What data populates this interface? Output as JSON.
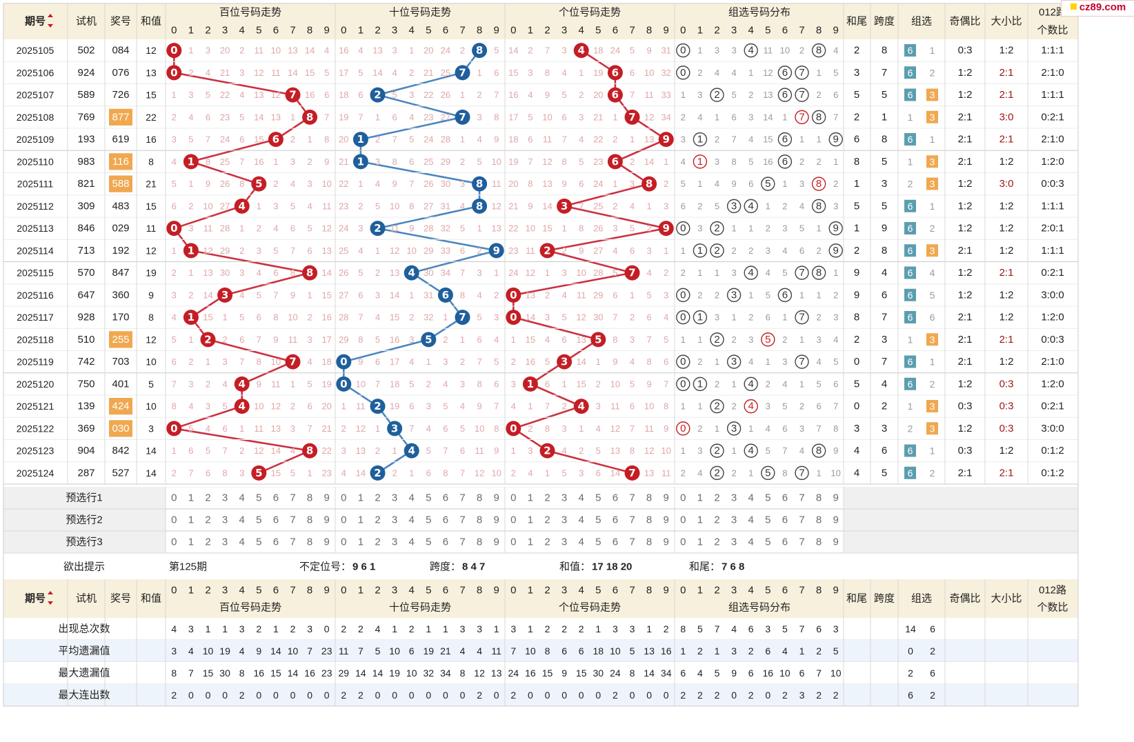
{
  "watermark": "cz89.com",
  "colors": {
    "header_bg": "#f7f0dc",
    "red_ball": "#c41e25",
    "blue_ball": "#1f5f9b",
    "red_line": "#cc3040",
    "blue_line": "#4a86bf",
    "orange_cell": "#f0a850",
    "teal_cell": "#5a9eb0",
    "miss_text": "#e0a6a6",
    "group_miss_text": "#9a9a9a",
    "blue_row": "#eef4fb"
  },
  "headers": {
    "period": "期号",
    "trial": "试机",
    "prize": "奖号",
    "sum": "和值",
    "hundreds": "百位号码走势",
    "tens": "十位号码走势",
    "units": "个位号码走势",
    "group": "组选号码分布",
    "sum_tail": "和尾",
    "span": "跨度",
    "group_type": "组选",
    "odd_even": "奇偶比",
    "big_small": "大小比",
    "route_012": "012路",
    "route_count": "个数比",
    "digits": [
      "0",
      "1",
      "2",
      "3",
      "4",
      "5",
      "6",
      "7",
      "8",
      "9"
    ]
  },
  "rows": [
    {
      "period": "2025105",
      "trial": "502",
      "prize": "084",
      "sum": "12",
      "tail": "2",
      "span": "8",
      "grp6": "6",
      "grp3": "1",
      "odd_even": "0:3",
      "big_small": "1:2",
      "route": "1:1:1",
      "h": [
        0,
        1,
        3,
        20,
        2,
        11,
        10,
        13,
        14,
        4
      ],
      "t": [
        16,
        4,
        13,
        3,
        1,
        20,
        24,
        2,
        0,
        5
      ],
      "u": [
        14,
        2,
        7,
        3,
        0,
        18,
        24,
        5,
        9,
        31
      ],
      "g": [
        0,
        1,
        3,
        3,
        0,
        11,
        10,
        2,
        0,
        4
      ]
    },
    {
      "period": "2025106",
      "trial": "924",
      "prize": "076",
      "sum": "13",
      "tail": "3",
      "span": "7",
      "grp6": "6",
      "grp3": "2",
      "odd_even": "1:2",
      "big_small": "2:1",
      "route": "2:1:0",
      "h": [
        0,
        2,
        4,
        21,
        3,
        12,
        11,
        14,
        15,
        5
      ],
      "t": [
        17,
        5,
        14,
        4,
        2,
        21,
        25,
        0,
        1,
        6
      ],
      "u": [
        15,
        3,
        8,
        4,
        1,
        19,
        0,
        6,
        10,
        32
      ],
      "g": [
        0,
        2,
        4,
        4,
        1,
        12,
        0,
        0,
        1,
        5
      ]
    },
    {
      "period": "2025107",
      "trial": "589",
      "prize": "726",
      "sum": "15",
      "tail": "5",
      "span": "5",
      "grp6": "6",
      "grp3": "3",
      "odd_even": "1:2",
      "big_small": "2:1",
      "route": "1:1:1",
      "h": [
        1,
        3,
        5,
        22,
        4,
        13,
        12,
        0,
        16,
        6
      ],
      "t": [
        18,
        6,
        0,
        5,
        3,
        22,
        26,
        1,
        2,
        7
      ],
      "u": [
        16,
        4,
        9,
        5,
        2,
        20,
        0,
        7,
        11,
        33
      ],
      "g": [
        1,
        3,
        0,
        5,
        2,
        13,
        0,
        0,
        2,
        6
      ]
    },
    {
      "period": "2025108",
      "trial": "769",
      "prize": "877",
      "sum": "22",
      "tail": "2",
      "span": "1",
      "grp6": "1",
      "grp3": "3",
      "odd_even": "2:1",
      "big_small": "3:0",
      "route": "0:2:1",
      "h": [
        2,
        4,
        6,
        23,
        5,
        14,
        13,
        1,
        0,
        7
      ],
      "t": [
        19,
        7,
        1,
        6,
        4,
        23,
        27,
        0,
        3,
        8
      ],
      "u": [
        17,
        5,
        10,
        6,
        3,
        21,
        1,
        0,
        12,
        34
      ],
      "g": [
        2,
        4,
        1,
        6,
        3,
        14,
        1,
        0,
        0,
        7
      ]
    },
    {
      "period": "2025109",
      "trial": "193",
      "prize": "619",
      "sum": "16",
      "tail": "6",
      "span": "8",
      "grp6": "6",
      "grp3": "1",
      "odd_even": "2:1",
      "big_small": "2:1",
      "route": "2:1:0",
      "h": [
        3,
        5,
        7,
        24,
        6,
        15,
        0,
        2,
        1,
        8
      ],
      "t": [
        20,
        0,
        2,
        7,
        5,
        24,
        28,
        1,
        4,
        9
      ],
      "u": [
        18,
        6,
        11,
        7,
        4,
        22,
        2,
        1,
        13,
        0
      ],
      "g": [
        3,
        0,
        2,
        7,
        4,
        15,
        0,
        1,
        1,
        0
      ]
    },
    {
      "period": "2025110",
      "trial": "983",
      "prize": "116",
      "sum": "8",
      "tail": "8",
      "span": "5",
      "grp6": "1",
      "grp3": "3",
      "odd_even": "2:1",
      "big_small": "1:2",
      "route": "1:2:0",
      "h": [
        4,
        0,
        8,
        25,
        7,
        16,
        1,
        3,
        2,
        9
      ],
      "t": [
        21,
        0,
        3,
        8,
        6,
        25,
        29,
        2,
        5,
        10
      ],
      "u": [
        19,
        7,
        12,
        8,
        5,
        23,
        0,
        2,
        14,
        1
      ],
      "g": [
        4,
        0,
        3,
        8,
        5,
        16,
        0,
        2,
        2,
        1
      ]
    },
    {
      "period": "2025111",
      "trial": "821",
      "prize": "588",
      "sum": "21",
      "tail": "1",
      "span": "3",
      "grp6": "2",
      "grp3": "3",
      "odd_even": "1:2",
      "big_small": "3:0",
      "route": "0:0:3",
      "h": [
        5,
        1,
        9,
        26,
        8,
        0,
        2,
        4,
        3,
        10
      ],
      "t": [
        22,
        1,
        4,
        9,
        7,
        26,
        30,
        3,
        0,
        11
      ],
      "u": [
        20,
        8,
        13,
        9,
        6,
        24,
        1,
        3,
        0,
        2
      ],
      "g": [
        5,
        1,
        4,
        9,
        6,
        0,
        1,
        3,
        0,
        2
      ]
    },
    {
      "period": "2025112",
      "trial": "309",
      "prize": "483",
      "sum": "15",
      "tail": "5",
      "span": "5",
      "grp6": "6",
      "grp3": "1",
      "odd_even": "1:2",
      "big_small": "1:2",
      "route": "1:1:1",
      "h": [
        6,
        2,
        10,
        27,
        0,
        1,
        3,
        5,
        4,
        11
      ],
      "t": [
        23,
        2,
        5,
        10,
        8,
        27,
        31,
        4,
        0,
        12
      ],
      "u": [
        21,
        9,
        14,
        0,
        7,
        25,
        2,
        4,
        1,
        3
      ],
      "g": [
        6,
        2,
        5,
        0,
        0,
        1,
        2,
        4,
        0,
        3
      ]
    },
    {
      "period": "2025113",
      "trial": "846",
      "prize": "029",
      "sum": "11",
      "tail": "1",
      "span": "9",
      "grp6": "6",
      "grp3": "2",
      "odd_even": "1:2",
      "big_small": "1:2",
      "route": "2:0:1",
      "h": [
        0,
        3,
        11,
        28,
        1,
        2,
        4,
        6,
        5,
        12
      ],
      "t": [
        24,
        3,
        0,
        11,
        9,
        28,
        32,
        5,
        1,
        13
      ],
      "u": [
        22,
        10,
        15,
        1,
        8,
        26,
        3,
        5,
        2,
        0
      ],
      "g": [
        0,
        3,
        0,
        1,
        1,
        2,
        3,
        5,
        1,
        0
      ]
    },
    {
      "period": "2025114",
      "trial": "713",
      "prize": "192",
      "sum": "12",
      "tail": "2",
      "span": "8",
      "grp6": "6",
      "grp3": "3",
      "odd_even": "2:1",
      "big_small": "1:2",
      "route": "1:1:1",
      "h": [
        1,
        0,
        12,
        29,
        2,
        3,
        5,
        7,
        6,
        13
      ],
      "t": [
        25,
        4,
        1,
        12,
        10,
        29,
        33,
        6,
        2,
        0
      ],
      "u": [
        23,
        11,
        0,
        2,
        9,
        27,
        4,
        6,
        3,
        1
      ],
      "g": [
        1,
        0,
        0,
        2,
        2,
        3,
        4,
        6,
        2,
        0
      ]
    },
    {
      "period": "2025115",
      "trial": "570",
      "prize": "847",
      "sum": "19",
      "tail": "9",
      "span": "4",
      "grp6": "6",
      "grp3": "4",
      "odd_even": "1:2",
      "big_small": "2:1",
      "route": "0:2:1",
      "h": [
        2,
        1,
        13,
        30,
        3,
        4,
        6,
        8,
        0,
        14
      ],
      "t": [
        26,
        5,
        2,
        13,
        0,
        30,
        34,
        7,
        3,
        1
      ],
      "u": [
        24,
        12,
        1,
        3,
        10,
        28,
        5,
        0,
        4,
        2
      ],
      "g": [
        2,
        1,
        1,
        3,
        0,
        4,
        5,
        0,
        0,
        1
      ]
    },
    {
      "period": "2025116",
      "trial": "647",
      "prize": "360",
      "sum": "9",
      "tail": "9",
      "span": "6",
      "grp6": "6",
      "grp3": "5",
      "odd_even": "1:2",
      "big_small": "1:2",
      "route": "3:0:0",
      "h": [
        3,
        2,
        14,
        0,
        4,
        5,
        7,
        9,
        1,
        15
      ],
      "t": [
        27,
        6,
        3,
        14,
        1,
        31,
        0,
        8,
        4,
        2
      ],
      "u": [
        0,
        13,
        2,
        4,
        11,
        29,
        6,
        1,
        5,
        3
      ],
      "g": [
        0,
        2,
        2,
        0,
        1,
        5,
        0,
        1,
        1,
        2
      ]
    },
    {
      "period": "2025117",
      "trial": "928",
      "prize": "170",
      "sum": "8",
      "tail": "8",
      "span": "7",
      "grp6": "6",
      "grp3": "6",
      "odd_even": "2:1",
      "big_small": "1:2",
      "route": "1:2:0",
      "h": [
        4,
        0,
        15,
        1,
        5,
        6,
        8,
        10,
        2,
        16
      ],
      "t": [
        28,
        7,
        4,
        15,
        2,
        32,
        1,
        0,
        5,
        3
      ],
      "u": [
        0,
        14,
        3,
        5,
        12,
        30,
        7,
        2,
        6,
        4
      ],
      "g": [
        0,
        0,
        3,
        1,
        2,
        6,
        1,
        0,
        2,
        3
      ]
    },
    {
      "period": "2025118",
      "trial": "510",
      "prize": "255",
      "sum": "12",
      "tail": "2",
      "span": "3",
      "grp6": "1",
      "grp3": "3",
      "odd_even": "2:1",
      "big_small": "2:1",
      "route": "0:0:3",
      "h": [
        5,
        1,
        0,
        2,
        6,
        7,
        9,
        11,
        3,
        17
      ],
      "t": [
        29,
        8,
        5,
        16,
        3,
        0,
        2,
        1,
        6,
        4
      ],
      "u": [
        1,
        15,
        4,
        6,
        13,
        0,
        8,
        3,
        7,
        5
      ],
      "g": [
        1,
        1,
        0,
        2,
        3,
        0,
        2,
        1,
        3,
        4
      ]
    },
    {
      "period": "2025119",
      "trial": "742",
      "prize": "703",
      "sum": "10",
      "tail": "0",
      "span": "7",
      "grp6": "6",
      "grp3": "1",
      "odd_even": "2:1",
      "big_small": "1:2",
      "route": "2:1:0",
      "h": [
        6,
        2,
        1,
        3,
        7,
        8,
        10,
        0,
        4,
        18
      ],
      "t": [
        0,
        9,
        6,
        17,
        4,
        1,
        3,
        2,
        7,
        5
      ],
      "u": [
        2,
        16,
        5,
        0,
        14,
        1,
        9,
        4,
        8,
        6
      ],
      "g": [
        0,
        2,
        1,
        0,
        4,
        1,
        3,
        0,
        4,
        5
      ]
    },
    {
      "period": "2025120",
      "trial": "750",
      "prize": "401",
      "sum": "5",
      "tail": "5",
      "span": "4",
      "grp6": "6",
      "grp3": "2",
      "odd_even": "1:2",
      "big_small": "0:3",
      "route": "1:2:0",
      "h": [
        7,
        3,
        2,
        4,
        0,
        9,
        11,
        1,
        5,
        19
      ],
      "t": [
        0,
        10,
        7,
        18,
        5,
        2,
        4,
        3,
        8,
        6
      ],
      "u": [
        3,
        0,
        6,
        1,
        15,
        2,
        10,
        5,
        9,
        7
      ],
      "g": [
        0,
        0,
        2,
        1,
        0,
        2,
        4,
        1,
        5,
        6
      ]
    },
    {
      "period": "2025121",
      "trial": "139",
      "prize": "424",
      "sum": "10",
      "tail": "0",
      "span": "2",
      "grp6": "1",
      "grp3": "3",
      "odd_even": "0:3",
      "big_small": "0:3",
      "route": "0:2:1",
      "h": [
        8,
        4,
        3,
        5,
        0,
        10,
        12,
        2,
        6,
        20
      ],
      "t": [
        1,
        11,
        0,
        19,
        6,
        3,
        5,
        4,
        9,
        7
      ],
      "u": [
        4,
        1,
        7,
        2,
        0,
        3,
        11,
        6,
        10,
        8
      ],
      "g": [
        1,
        1,
        0,
        2,
        0,
        3,
        5,
        2,
        6,
        7
      ]
    },
    {
      "period": "2025122",
      "trial": "369",
      "prize": "030",
      "sum": "3",
      "tail": "3",
      "span": "3",
      "grp6": "2",
      "grp3": "3",
      "odd_even": "1:2",
      "big_small": "0:3",
      "route": "3:0:0",
      "h": [
        0,
        5,
        4,
        6,
        1,
        11,
        13,
        3,
        7,
        21
      ],
      "t": [
        2,
        12,
        1,
        0,
        7,
        4,
        6,
        5,
        10,
        8
      ],
      "u": [
        0,
        2,
        8,
        3,
        1,
        4,
        12,
        7,
        11,
        9
      ],
      "g": [
        0,
        2,
        1,
        0,
        1,
        4,
        6,
        3,
        7,
        8
      ]
    },
    {
      "period": "2025123",
      "trial": "904",
      "prize": "842",
      "sum": "14",
      "tail": "4",
      "span": "6",
      "grp6": "6",
      "grp3": "1",
      "odd_even": "0:3",
      "big_small": "1:2",
      "route": "0:1:2",
      "h": [
        1,
        6,
        5,
        7,
        2,
        12,
        14,
        4,
        0,
        22
      ],
      "t": [
        3,
        13,
        2,
        1,
        0,
        5,
        7,
        6,
        11,
        9
      ],
      "u": [
        1,
        3,
        0,
        4,
        2,
        5,
        13,
        8,
        12,
        10
      ],
      "g": [
        1,
        3,
        0,
        1,
        0,
        5,
        7,
        4,
        0,
        9
      ]
    },
    {
      "period": "2025124",
      "trial": "287",
      "prize": "527",
      "sum": "14",
      "tail": "4",
      "span": "5",
      "grp6": "6",
      "grp3": "2",
      "odd_even": "2:1",
      "big_small": "2:1",
      "route": "0:1:2",
      "h": [
        2,
        7,
        6,
        8,
        3,
        0,
        15,
        5,
        1,
        23
      ],
      "t": [
        4,
        14,
        0,
        2,
        1,
        6,
        8,
        7,
        12,
        10
      ],
      "u": [
        2,
        4,
        1,
        5,
        3,
        6,
        14,
        0,
        13,
        11
      ],
      "g": [
        2,
        4,
        0,
        2,
        1,
        0,
        8,
        0,
        1,
        10
      ]
    }
  ],
  "preselect_rows": [
    "预选行1",
    "预选行2",
    "预选行3"
  ],
  "hint": {
    "label": "欲出提示",
    "period": "第125期",
    "undetermined_label": "不定位号：",
    "undetermined": "9 6 1",
    "span_label": "跨度：",
    "span": "8 4 7",
    "sum_label": "和值：",
    "sum": "17 18 20",
    "tail_label": "和尾：",
    "tail": "7 6 8"
  },
  "stats": [
    {
      "label": "出现总次数",
      "vals": [
        4,
        3,
        1,
        1,
        3,
        2,
        1,
        2,
        3,
        0,
        2,
        2,
        4,
        1,
        2,
        1,
        1,
        3,
        3,
        1,
        3,
        1,
        2,
        2,
        2,
        1,
        3,
        3,
        1,
        2,
        8,
        5,
        7,
        4,
        6,
        3,
        5,
        7,
        6,
        3
      ],
      "grp": [
        "14",
        "6"
      ]
    },
    {
      "label": "平均遗漏值",
      "vals": [
        3,
        4,
        10,
        19,
        4,
        9,
        14,
        10,
        7,
        23,
        11,
        7,
        5,
        10,
        6,
        19,
        21,
        4,
        4,
        11,
        7,
        10,
        8,
        6,
        6,
        18,
        10,
        5,
        13,
        16,
        1,
        2,
        1,
        3,
        2,
        6,
        4,
        1,
        2,
        5
      ],
      "grp": [
        "0",
        "2"
      ]
    },
    {
      "label": "最大遗漏值",
      "vals": [
        8,
        7,
        15,
        30,
        8,
        16,
        15,
        14,
        16,
        23,
        29,
        14,
        14,
        19,
        10,
        32,
        34,
        8,
        12,
        13,
        24,
        16,
        15,
        9,
        15,
        30,
        24,
        8,
        14,
        34,
        6,
        4,
        5,
        9,
        6,
        16,
        10,
        6,
        7,
        10
      ],
      "grp": [
        "2",
        "6"
      ]
    },
    {
      "label": "最大连出数",
      "vals": [
        2,
        0,
        0,
        0,
        2,
        0,
        0,
        0,
        0,
        0,
        2,
        2,
        0,
        0,
        0,
        0,
        0,
        0,
        2,
        0,
        2,
        0,
        0,
        0,
        0,
        0,
        2,
        0,
        0,
        0,
        2,
        2,
        2,
        0,
        2,
        0,
        2,
        3,
        2,
        2
      ],
      "grp": [
        "6",
        "2"
      ]
    }
  ]
}
